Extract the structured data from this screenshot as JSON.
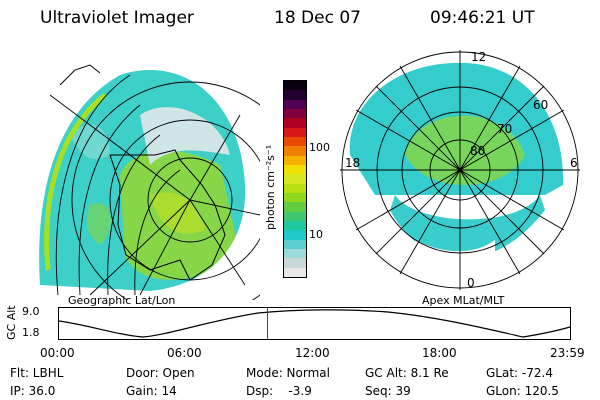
{
  "header": {
    "title": "Ultraviolet Imager",
    "date": "18 Dec 07",
    "time": "09:46:21 UT"
  },
  "colorbar": {
    "label": "photon cm⁻²s⁻¹",
    "ticks": [
      "100",
      "10"
    ],
    "colors": [
      "#e8e8e8",
      "#c8d8d8",
      "#9adada",
      "#5cd0d0",
      "#20c8c8",
      "#20c8a0",
      "#40c870",
      "#60cc40",
      "#90d820",
      "#b8e010",
      "#d8e820",
      "#f0e000",
      "#f8b000",
      "#f08000",
      "#e84800",
      "#d81818",
      "#b00020",
      "#800040",
      "#500050",
      "#200030",
      "#080010"
    ]
  },
  "left_panel": {
    "caption": "Geographic Lat/Lon"
  },
  "right_panel": {
    "caption": "Apex MLat/MLT",
    "mlt_labels": {
      "top": "12",
      "bottom": "0",
      "left": "18",
      "right": "6"
    },
    "lat_labels": [
      "80",
      "70",
      "60"
    ]
  },
  "altitude_plot": {
    "ylabel": "GC Alt",
    "y_ticks": [
      "9.0",
      "1.8"
    ],
    "x_ticks": [
      "00:00",
      "06:00",
      "12:00",
      "18:00",
      "23:59"
    ],
    "current_time_frac": 0.408,
    "marker_color": "#c01020"
  },
  "info": {
    "row1": {
      "filter": "Flt: LBHL",
      "door": "Door: Open",
      "mode": "Mode: Normal",
      "gc_alt": "GC Alt: 8.1 Re",
      "glat": "GLat: -72.4"
    },
    "row2": {
      "ip": "IP: 36.0",
      "gain": "Gain: 14",
      "dsp": "Dsp:    -3.9",
      "seq": "Seq: 39",
      "glon": "GLon: 120.5"
    }
  }
}
